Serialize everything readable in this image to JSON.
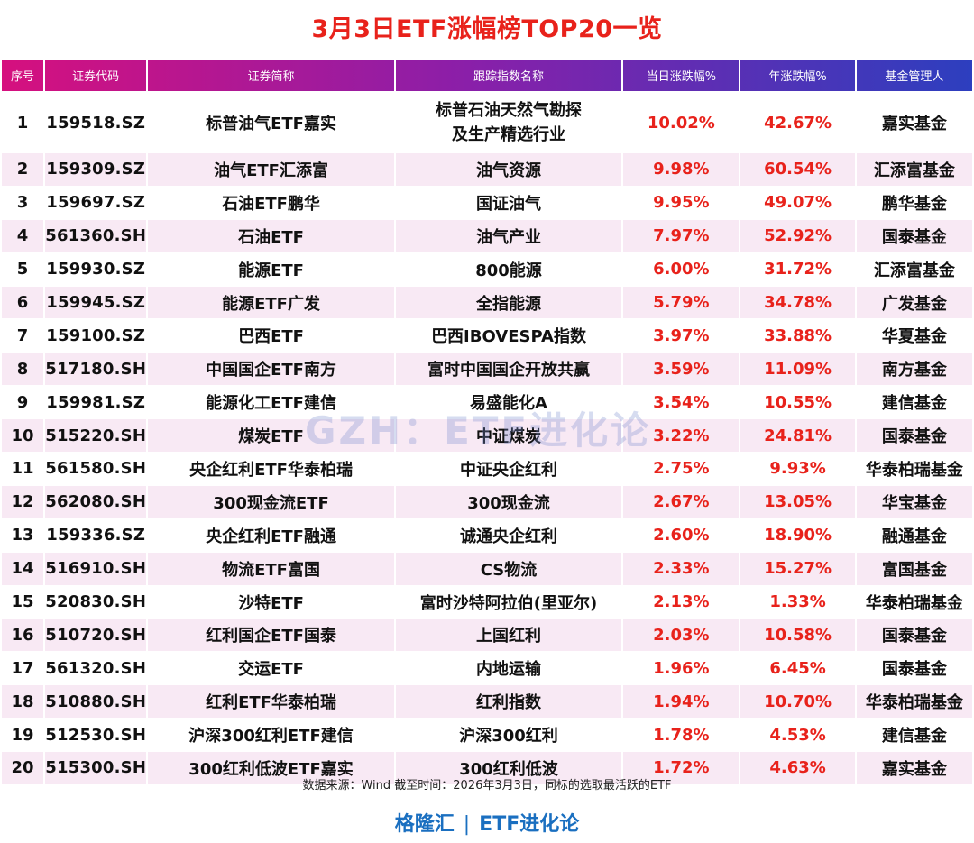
{
  "title": "3月3日ETF涨幅榜TOP20一览",
  "headers": {
    "rank": "序号",
    "code": "证券代码",
    "name": "证券简称",
    "index": "跟踪指数名称",
    "day_change": "当日涨跌幅%",
    "year_change": "年涨跌幅%",
    "manager": "基金管理人"
  },
  "rows": [
    {
      "rank": "1",
      "code": "159518.SZ",
      "name": "标普油气ETF嘉实",
      "index_line1": "标普石油天然气勘探",
      "index_line2": "及生产精选行业",
      "day": "10.02%",
      "year": "42.67%",
      "manager": "嘉实基金"
    },
    {
      "rank": "2",
      "code": "159309.SZ",
      "name": "油气ETF汇添富",
      "index": "油气资源",
      "day": "9.98%",
      "year": "60.54%",
      "manager": "汇添富基金"
    },
    {
      "rank": "3",
      "code": "159697.SZ",
      "name": "石油ETF鹏华",
      "index": "国证油气",
      "day": "9.95%",
      "year": "49.07%",
      "manager": "鹏华基金"
    },
    {
      "rank": "4",
      "code": "561360.SH",
      "name": "石油ETF",
      "index": "油气产业",
      "day": "7.97%",
      "year": "52.92%",
      "manager": "国泰基金"
    },
    {
      "rank": "5",
      "code": "159930.SZ",
      "name": "能源ETF",
      "index": "800能源",
      "day": "6.00%",
      "year": "31.72%",
      "manager": "汇添富基金"
    },
    {
      "rank": "6",
      "code": "159945.SZ",
      "name": "能源ETF广发",
      "index": "全指能源",
      "day": "5.79%",
      "year": "34.78%",
      "manager": "广发基金"
    },
    {
      "rank": "7",
      "code": "159100.SZ",
      "name": "巴西ETF",
      "index": "巴西IBOVESPA指数",
      "day": "3.97%",
      "year": "33.88%",
      "manager": "华夏基金"
    },
    {
      "rank": "8",
      "code": "517180.SH",
      "name": "中国国企ETF南方",
      "index": "富时中国国企开放共赢",
      "day": "3.59%",
      "year": "11.09%",
      "manager": "南方基金"
    },
    {
      "rank": "9",
      "code": "159981.SZ",
      "name": "能源化工ETF建信",
      "index": "易盛能化A",
      "day": "3.54%",
      "year": "10.55%",
      "manager": "建信基金"
    },
    {
      "rank": "10",
      "code": "515220.SH",
      "name": "煤炭ETF",
      "index": "中证煤炭",
      "day": "3.22%",
      "year": "24.81%",
      "manager": "国泰基金"
    },
    {
      "rank": "11",
      "code": "561580.SH",
      "name": "央企红利ETF华泰柏瑞",
      "index": "中证央企红利",
      "day": "2.75%",
      "year": "9.93%",
      "manager": "华泰柏瑞基金"
    },
    {
      "rank": "12",
      "code": "562080.SH",
      "name": "300现金流ETF",
      "index": "300现金流",
      "day": "2.67%",
      "year": "13.05%",
      "manager": "华宝基金"
    },
    {
      "rank": "13",
      "code": "159336.SZ",
      "name": "央企红利ETF融通",
      "index": "诚通央企红利",
      "day": "2.60%",
      "year": "18.90%",
      "manager": "融通基金"
    },
    {
      "rank": "14",
      "code": "516910.SH",
      "name": "物流ETF富国",
      "index": "CS物流",
      "day": "2.33%",
      "year": "15.27%",
      "manager": "富国基金"
    },
    {
      "rank": "15",
      "code": "520830.SH",
      "name": "沙特ETF",
      "index": "富时沙特阿拉伯(里亚尔)",
      "day": "2.13%",
      "year": "1.33%",
      "manager": "华泰柏瑞基金"
    },
    {
      "rank": "16",
      "code": "510720.SH",
      "name": "红利国企ETF国泰",
      "index": "上国红利",
      "day": "2.03%",
      "year": "10.58%",
      "manager": "国泰基金"
    },
    {
      "rank": "17",
      "code": "561320.SH",
      "name": "交运ETF",
      "index": "内地运输",
      "day": "1.96%",
      "year": "6.45%",
      "manager": "国泰基金"
    },
    {
      "rank": "18",
      "code": "510880.SH",
      "name": "红利ETF华泰柏瑞",
      "index": "红利指数",
      "day": "1.94%",
      "year": "10.70%",
      "manager": "华泰柏瑞基金"
    },
    {
      "rank": "19",
      "code": "512530.SH",
      "name": "沪深300红利ETF建信",
      "index": "沪深300红利",
      "day": "1.78%",
      "year": "4.53%",
      "manager": "建信基金"
    },
    {
      "rank": "20",
      "code": "515300.SH",
      "name": "300红利低波ETF嘉实",
      "index": "300红利低波",
      "day": "1.72%",
      "year": "4.63%",
      "manager": "嘉实基金"
    }
  ],
  "watermark": "GZH：ETF进化论",
  "footnote": "数据来源：Wind 截至时间：2026年3月3日，同标的选取最活跃的ETF",
  "brand": {
    "left": "格隆汇",
    "sep": "|",
    "right": "ETF进化论"
  },
  "colors": {
    "title": "#e8221b",
    "positive": "#e8221b",
    "row_alt": "#f8e9f4",
    "brand": "#1a6fc0"
  }
}
